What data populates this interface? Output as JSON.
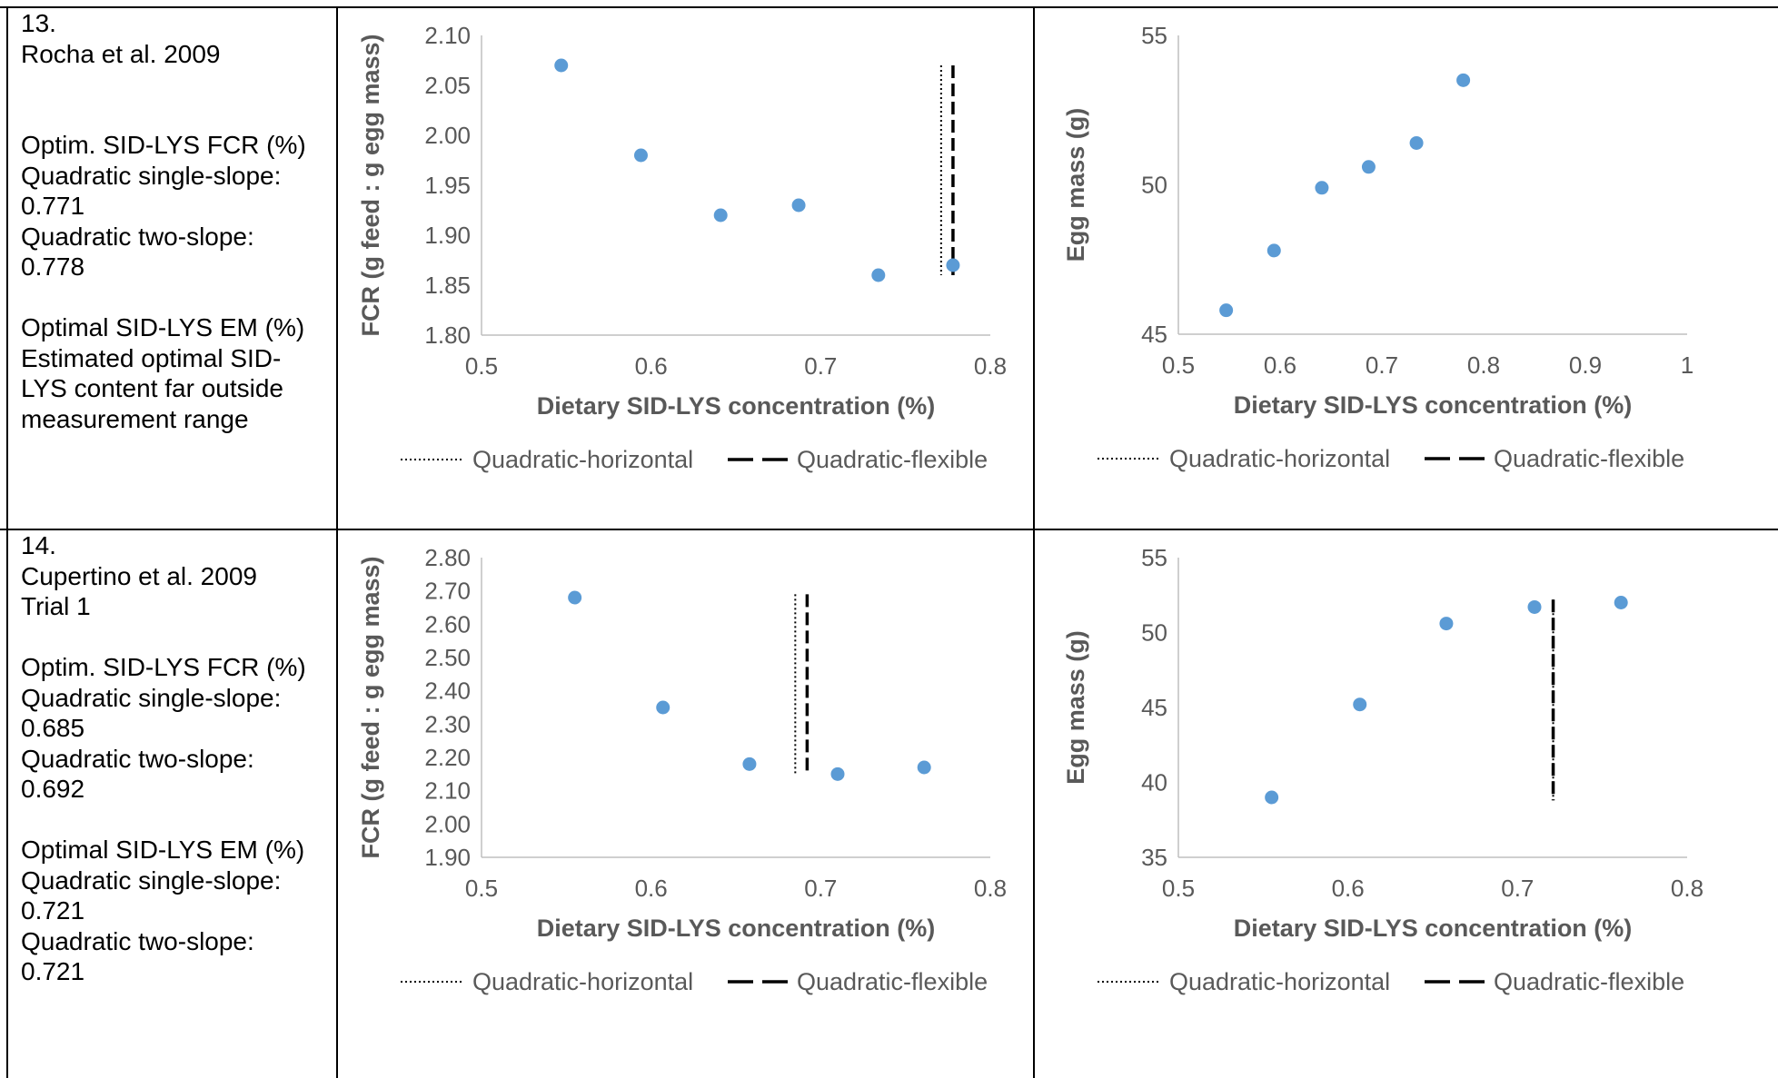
{
  "rows": [
    {
      "text": {
        "number": "13.",
        "study": "Rocha et al. 2009",
        "study2": "",
        "fcr_heading": "Optim. SID-LYS FCR (%)",
        "fcr_lines": [
          "Quadratic single-slope:",
          "0.771",
          "Quadratic two-slope:",
          "0.778"
        ],
        "em_heading": "Optimal SID-LYS EM (%)",
        "em_lines": [
          "Estimated optimal SID-",
          "LYS content far outside",
          "measurement range"
        ]
      }
    },
    {
      "text": {
        "number": "14.",
        "study": "Cupertino et al. 2009",
        "study2": "Trial 1",
        "fcr_heading": "Optim. SID-LYS FCR (%)",
        "fcr_lines": [
          "Quadratic single-slope:",
          "0.685",
          "Quadratic two-slope:",
          "0.692"
        ],
        "em_heading": "Optimal SID-LYS EM (%)",
        "em_lines": [
          "Quadratic single-slope:",
          "0.721",
          "Quadratic two-slope:",
          "0.721"
        ]
      }
    }
  ],
  "chart_data": [
    {
      "id": "r13-fcr",
      "type": "scatter",
      "xlabel": "Dietary SID-LYS concentration (%)",
      "ylabel": "FCR (g feed : g egg mass)",
      "xlim": [
        0.5,
        0.8
      ],
      "ylim": [
        1.8,
        2.1
      ],
      "xticks": [
        "0.5",
        "0.6",
        "0.7",
        "0.8"
      ],
      "yticks": [
        "1.80",
        "1.85",
        "1.90",
        "1.95",
        "2.00",
        "2.05",
        "2.10"
      ],
      "point_color": "#5B9BD5",
      "x": [
        0.547,
        0.594,
        0.641,
        0.687,
        0.734,
        0.778
      ],
      "y": [
        2.07,
        1.98,
        1.92,
        1.93,
        1.86,
        1.87
      ],
      "vlines": [
        {
          "x": 0.771,
          "y": [
            1.86,
            2.07
          ]
        },
        {
          "x": 0.778,
          "y": [
            1.86,
            2.07
          ]
        }
      ],
      "legend": [
        "Quadratic-horizontal",
        "Quadratic-flexible"
      ],
      "legend_position": "bottom"
    },
    {
      "id": "r13-em",
      "type": "scatter",
      "xlabel": "Dietary SID-LYS concentration (%)",
      "ylabel": "Egg mass (g)",
      "xlim": [
        0.5,
        1.0
      ],
      "ylim": [
        45,
        55
      ],
      "xticks": [
        "0.5",
        "0.6",
        "0.7",
        "0.8",
        "0.9",
        "1"
      ],
      "yticks": [
        "45",
        "50",
        "55"
      ],
      "point_color": "#5B9BD5",
      "x": [
        0.547,
        0.594,
        0.641,
        0.687,
        0.734,
        0.78
      ],
      "y": [
        45.8,
        47.8,
        49.9,
        50.6,
        51.4,
        53.5
      ],
      "vlines": [],
      "legend": [
        "Quadratic-horizontal",
        "Quadratic-flexible"
      ],
      "legend_position": "bottom"
    },
    {
      "id": "r14-fcr",
      "type": "scatter",
      "xlabel": "Dietary SID-LYS concentration (%)",
      "ylabel": "FCR (g feed : g egg mass)",
      "xlim": [
        0.5,
        0.8
      ],
      "ylim": [
        1.9,
        2.8
      ],
      "xticks": [
        "0.5",
        "0.6",
        "0.7",
        "0.8"
      ],
      "yticks": [
        "1.90",
        "2.00",
        "2.10",
        "2.20",
        "2.30",
        "2.40",
        "2.50",
        "2.60",
        "2.70",
        "2.80"
      ],
      "point_color": "#5B9BD5",
      "x": [
        0.555,
        0.607,
        0.658,
        0.71,
        0.761
      ],
      "y": [
        2.68,
        2.35,
        2.18,
        2.15,
        2.17
      ],
      "vlines": [
        {
          "x": 0.685,
          "y": [
            2.15,
            2.69
          ]
        },
        {
          "x": 0.692,
          "y": [
            2.15,
            2.69
          ]
        }
      ],
      "legend": [
        "Quadratic-horizontal",
        "Quadratic-flexible"
      ],
      "legend_position": "bottom"
    },
    {
      "id": "r14-em",
      "type": "scatter",
      "xlabel": "Dietary SID-LYS concentration (%)",
      "ylabel": "Egg mass (g)",
      "xlim": [
        0.5,
        0.8
      ],
      "ylim": [
        35,
        55
      ],
      "xticks": [
        "0.5",
        "0.6",
        "0.7",
        "0.8"
      ],
      "yticks": [
        "35",
        "40",
        "45",
        "50",
        "55"
      ],
      "point_color": "#5B9BD5",
      "x": [
        0.555,
        0.607,
        0.658,
        0.71,
        0.761
      ],
      "y": [
        39.0,
        45.2,
        50.6,
        51.7,
        52.0
      ],
      "vlines": [
        {
          "x": 0.721,
          "y": [
            38.8,
            52.2
          ]
        },
        {
          "x": 0.721,
          "y": [
            38.8,
            52.2
          ]
        }
      ],
      "legend": [
        "Quadratic-horizontal",
        "Quadratic-flexible"
      ],
      "legend_position": "bottom"
    }
  ]
}
